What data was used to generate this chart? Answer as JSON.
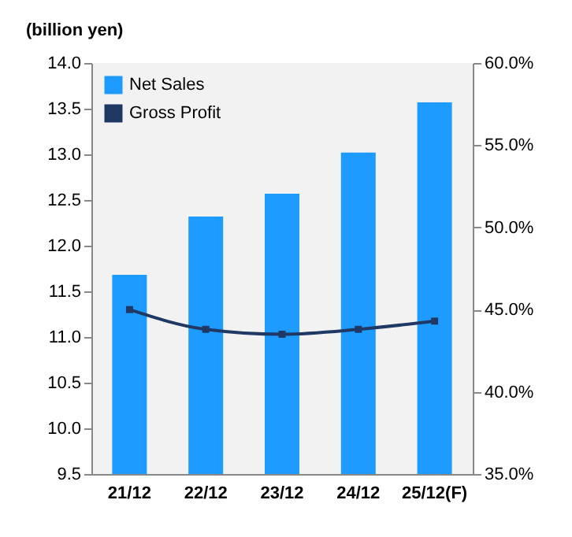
{
  "chart_data": {
    "type": "bar",
    "ylabel": "(billion yen)",
    "categories": [
      "21/12",
      "22/12",
      "23/12",
      "24/12",
      "25/12(F)"
    ],
    "series": [
      {
        "name": "Net Sales",
        "color": "#1e9bff",
        "values": [
          11.68,
          12.32,
          12.57,
          13.02,
          13.57
        ]
      },
      {
        "name": "Gross Profit",
        "type": "line",
        "axis": "y2",
        "color": "#1f3864",
        "marker": "square",
        "values": [
          45.0,
          43.8,
          43.5,
          43.8,
          44.3
        ]
      }
    ],
    "ylim": [
      9.5,
      14.0
    ],
    "yticks": [
      9.5,
      {
        "value": 10,
        "label": "10.0"
      },
      10.5,
      {
        "value": 11,
        "label": "11.0"
      },
      11.5,
      {
        "value": 12,
        "label": "12.0"
      },
      12.5,
      {
        "value": 13,
        "label": "13.0"
      },
      13.5,
      {
        "value": 14,
        "label": "14.0"
      }
    ],
    "y2lim": [
      35,
      60
    ],
    "y2ticks": [
      {
        "value": 35,
        "label": "35.0%"
      },
      {
        "value": 40,
        "label": "40.0%"
      },
      {
        "value": 45,
        "label": "45.0%"
      },
      {
        "value": 50,
        "label": "50.0%"
      },
      {
        "value": 55,
        "label": "55.0%"
      },
      {
        "value": 60,
        "label": "60.0%"
      }
    ],
    "legend": "top left",
    "grid": false
  }
}
